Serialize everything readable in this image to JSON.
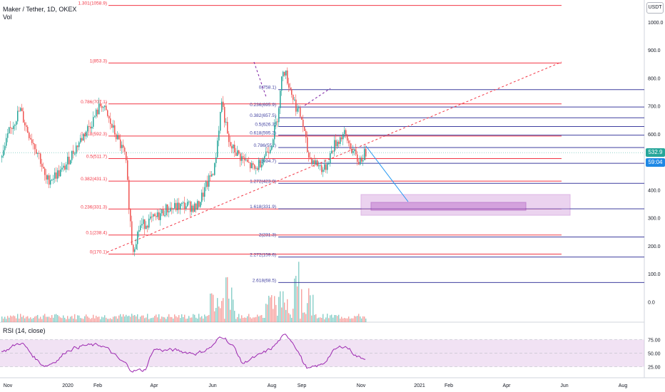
{
  "header": {
    "symbol": "Maker / Tether, 1D, OKEX",
    "volume_label": "Vol",
    "currency_button": "USDT",
    "rsi_label": "RSI (14, close)"
  },
  "price_tags": {
    "last_price": "532.9",
    "countdown": "59:04"
  },
  "colors": {
    "fib_left": "#f23645",
    "fib_right": "#3f3f9f",
    "up_candle": "#26a69a",
    "down_candle": "#ef5350",
    "rsi_line": "#9c27b0",
    "rsi_band": "#e1bee7",
    "target_box": "#ce93d8",
    "trend_line": "#f23645",
    "forecast_line": "#2196f3",
    "tag_green": "#26a69a",
    "tag_blue": "#1e88e5"
  },
  "chart_data": {
    "type": "candlestick",
    "title": "Maker / Tether, 1D, OKEX",
    "price_axis": {
      "ylim": [
        -40,
        1080
      ],
      "ticks": [
        "1000.0",
        "900.0",
        "800.0",
        "700.0",
        "600.0",
        "500.0",
        "400.0",
        "300.0",
        "200.0",
        "100.0",
        "0.0"
      ]
    },
    "time_axis": {
      "ticks": [
        "Nov",
        "2020",
        "Feb",
        "Apr",
        "Jun",
        "Aug",
        "Sep",
        "Nov",
        "2021",
        "Feb",
        "Apr",
        "Jun",
        "Aug"
      ]
    },
    "fib_left": [
      {
        "label": "1.301(1058.9)",
        "price": 1058.9
      },
      {
        "label": "1(853.3)",
        "price": 853.3
      },
      {
        "label": "0.786(707.1)",
        "price": 707.1
      },
      {
        "label": "0.618(592.3)",
        "price": 592.3
      },
      {
        "label": "0.5(511.7)",
        "price": 511.7
      },
      {
        "label": "0.382(431.1)",
        "price": 431.1
      },
      {
        "label": "0.236(331.3)",
        "price": 331.3
      },
      {
        "label": "0.1(238.4)",
        "price": 238.4
      },
      {
        "label": "0(170.1)",
        "price": 170.1
      }
    ],
    "fib_right": [
      {
        "label": "0(758.1)",
        "price": 758.1
      },
      {
        "label": "0.236(695.9)",
        "price": 695.9
      },
      {
        "label": "0.382(657.5)",
        "price": 657.5
      },
      {
        "label": "0.5(626.3)",
        "price": 626.3
      },
      {
        "label": "0.618(595.2)",
        "price": 595.2
      },
      {
        "label": "0.786(551)",
        "price": 551
      },
      {
        "label": "1(494.7)",
        "price": 494.7
      },
      {
        "label": "1.272(423.0)",
        "price": 423.0
      },
      {
        "label": "1.618(331.9)",
        "price": 331.9
      },
      {
        "label": "2(231.3)",
        "price": 231.3
      },
      {
        "label": "2.272(159.6)",
        "price": 159.6
      },
      {
        "label": "2.618(68.5)",
        "price": 68.5
      }
    ],
    "price_path": [
      [
        "Oct 2019",
        515
      ],
      [
        "Oct 2019",
        605
      ],
      [
        "Nov 2019",
        688
      ],
      [
        "Nov 2019",
        618
      ],
      [
        "Dec 2019",
        520
      ],
      [
        "Dec 2019",
        430
      ],
      [
        "Jan 2020",
        470
      ],
      [
        "Jan 2020",
        540
      ],
      [
        "Feb 2020",
        650
      ],
      [
        "Feb 2020",
        710
      ],
      [
        "Feb 2020",
        640
      ],
      [
        "Mar 2020",
        520
      ],
      [
        "Mar 2020",
        180
      ],
      [
        "Mar 2020",
        270
      ],
      [
        "Apr 2020",
        300
      ],
      [
        "Apr 2020",
        330
      ],
      [
        "May 2020",
        345
      ],
      [
        "May 2020",
        335
      ],
      [
        "Jun 2020",
        480
      ],
      [
        "Jun 2020",
        720
      ],
      [
        "Jun 2020",
        560
      ],
      [
        "Jul 2020",
        500
      ],
      [
        "Jul 2020",
        470
      ],
      [
        "Aug 2020",
        560
      ],
      [
        "Aug 2020",
        650
      ],
      [
        "Aug 2020",
        840
      ],
      [
        "Sep 2020",
        700
      ],
      [
        "Sep 2020",
        650
      ],
      [
        "Sep 2020",
        520
      ],
      [
        "Oct 2020",
        470
      ],
      [
        "Oct 2020",
        560
      ],
      [
        "Oct 2020",
        600
      ],
      [
        "Nov 2020",
        500
      ],
      [
        "Nov 2020",
        533
      ]
    ],
    "rsi": {
      "levels": [
        "75.00",
        "50.00",
        "25.00"
      ],
      "band": [
        30,
        70
      ],
      "current": 45
    }
  }
}
